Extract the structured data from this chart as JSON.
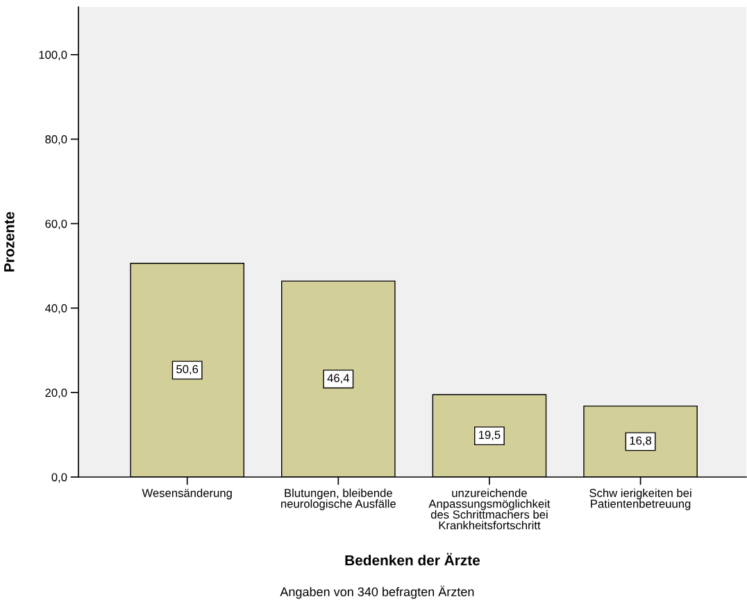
{
  "chart_data": {
    "type": "bar",
    "xlabel": "Bedenken der Ärzte",
    "ylabel": "Prozente",
    "categories": [
      "Wesensänderung",
      "Blutungen, bleibende\nneurologische Ausfälle",
      "unzureichende\nAnpassungsmöglichkeit\ndes Schrittmachers bei\nKrankheitsfortschritt",
      "Schw ierigkeiten bei\nPatientenbetreuung"
    ],
    "values": [
      50.6,
      46.4,
      19.5,
      16.8
    ],
    "value_labels": [
      "50,6",
      "46,4",
      "19,5",
      "16,8"
    ],
    "color": "#d3cf99",
    "ylim": [
      0,
      111.3
    ],
    "yticks": [
      {
        "value": 0,
        "label": "0,0"
      },
      {
        "value": 20,
        "label": "20,0"
      },
      {
        "value": 40,
        "label": "40,0"
      },
      {
        "value": 60,
        "label": "60,0"
      },
      {
        "value": 80,
        "label": "80,0"
      },
      {
        "value": 100,
        "label": "100,0"
      }
    ],
    "grid": false,
    "annotations": [
      "Angaben von 340 befragten Ärzten"
    ]
  }
}
